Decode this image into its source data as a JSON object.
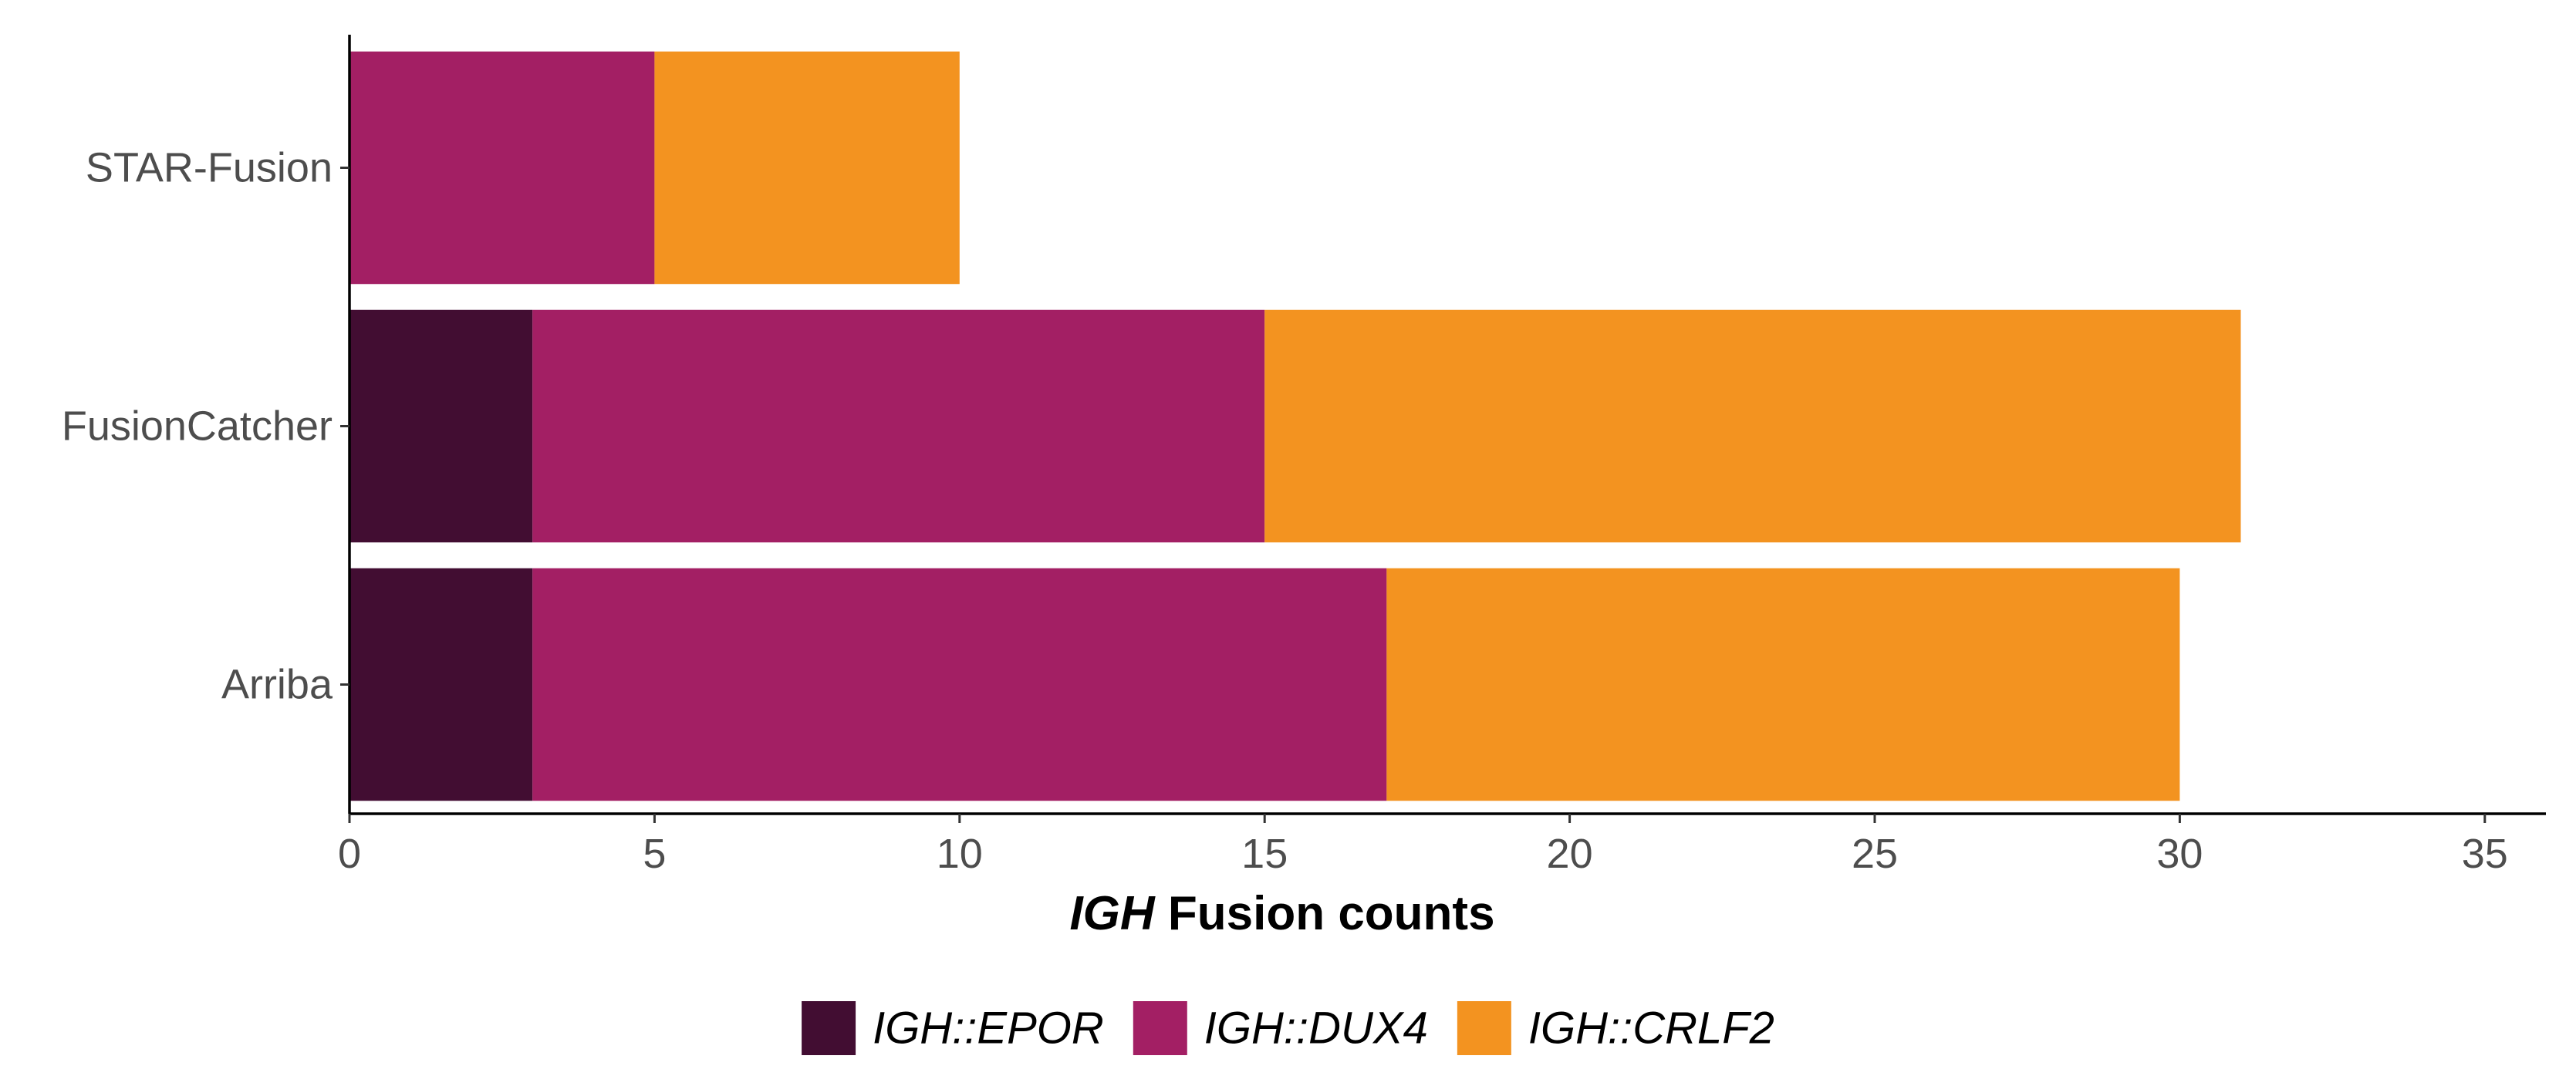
{
  "chart_data": {
    "type": "bar",
    "orientation": "horizontal",
    "stacked": true,
    "categories": [
      "STAR-Fusion",
      "FusionCatcher",
      "Arriba"
    ],
    "series": [
      {
        "name": "IGH::EPOR",
        "color": "#420D32",
        "values": [
          0,
          3,
          3
        ]
      },
      {
        "name": "IGH::DUX4",
        "color": "#A31F64",
        "values": [
          5,
          12,
          14
        ]
      },
      {
        "name": "IGH::CRLF2",
        "color": "#F39320",
        "values": [
          5,
          16,
          13
        ]
      }
    ],
    "xlabel_italic": "IGH",
    "xlabel_rest": " Fusion counts",
    "xlim": [
      0,
      35
    ],
    "xticks": [
      0,
      5,
      10,
      15,
      20,
      25,
      30,
      35
    ],
    "grid": false,
    "legend_position": "bottom"
  }
}
